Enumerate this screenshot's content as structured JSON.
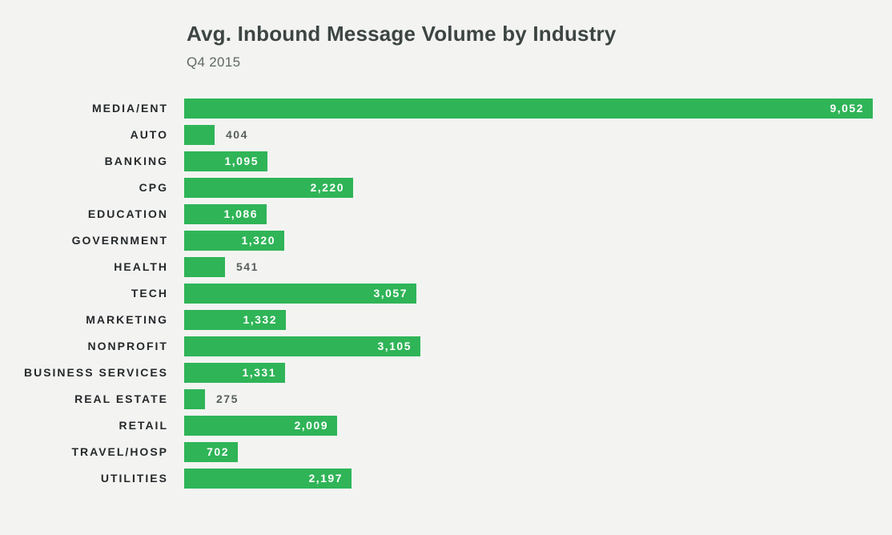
{
  "chart_data": {
    "type": "bar",
    "orientation": "horizontal",
    "title": "Avg. Inbound Message Volume by Industry",
    "subtitle": "Q4 2015",
    "categories": [
      "MEDIA/ENT",
      "AUTO",
      "BANKING",
      "CPG",
      "EDUCATION",
      "GOVERNMENT",
      "HEALTH",
      "TECH",
      "MARKETING",
      "NONPROFIT",
      "BUSINESS SERVICES",
      "REAL ESTATE",
      "RETAIL",
      "TRAVEL/HOSP",
      "UTILITIES"
    ],
    "values": [
      9052,
      404,
      1095,
      2220,
      1086,
      1320,
      541,
      3057,
      1332,
      3105,
      1331,
      275,
      2009,
      702,
      2197
    ],
    "value_labels": [
      "9,052",
      "404",
      "1,095",
      "2,220",
      "1,086",
      "1,320",
      "541",
      "3,057",
      "1,332",
      "3,105",
      "1,331",
      "275",
      "2,009",
      "702",
      "2,197"
    ],
    "xlim": [
      0,
      9052
    ],
    "grid": false,
    "legend": false,
    "bar_color": "#2fb457",
    "inside_value_color": "#ffffff",
    "outside_value_color": "#585f5d",
    "label_color": "#26292b",
    "title_color": "#3d4543",
    "subtitle_color": "#5f6864",
    "background_color": "#f3f4f2",
    "value_label_outside_below": 600
  }
}
